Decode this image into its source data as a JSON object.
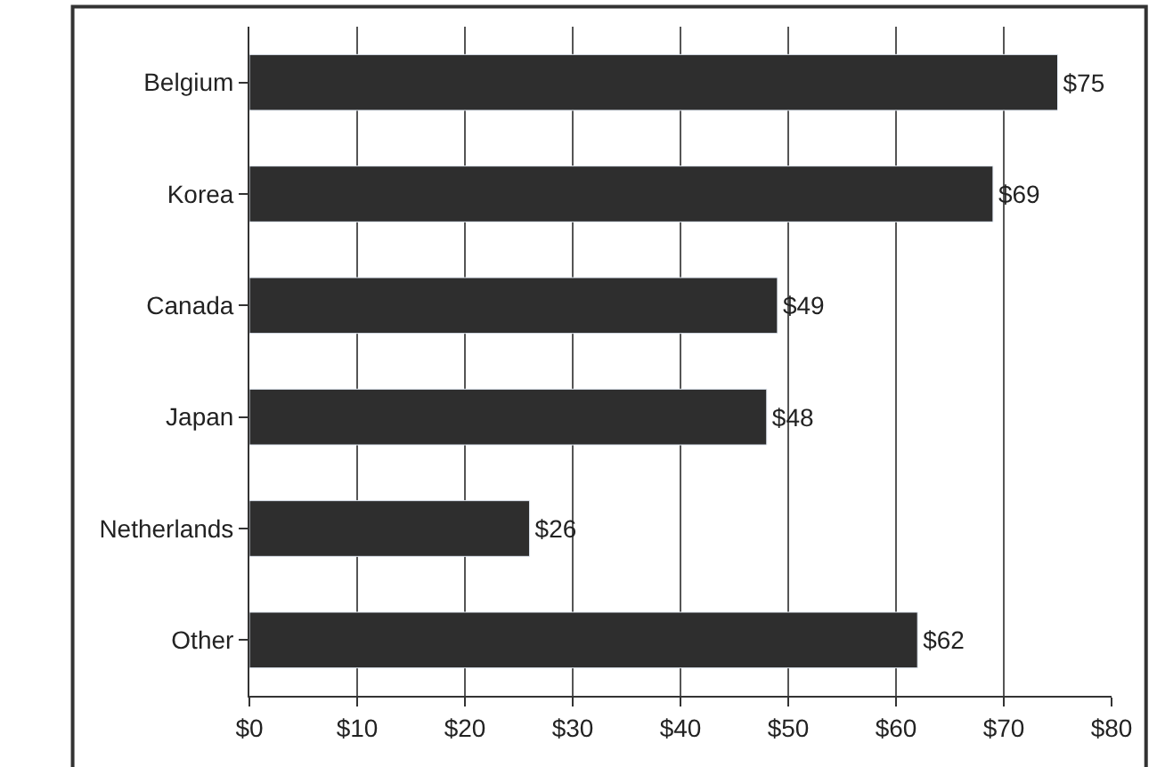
{
  "chart_data": {
    "type": "bar",
    "orientation": "horizontal",
    "categories": [
      "Belgium",
      "Korea",
      "Canada",
      "Japan",
      "Netherlands",
      "Other"
    ],
    "values": [
      75,
      69,
      49,
      48,
      26,
      62
    ],
    "value_labels": [
      "$75",
      "$69",
      "$49",
      "$48",
      "$26",
      "$62"
    ],
    "color": "#2e2e2e",
    "xlim": [
      0,
      80
    ],
    "xticks": [
      {
        "value": 0,
        "label": "$0"
      },
      {
        "value": 10,
        "label": "$10"
      },
      {
        "value": 20,
        "label": "$20"
      },
      {
        "value": 30,
        "label": "$30"
      },
      {
        "value": 40,
        "label": "$40"
      },
      {
        "value": 50,
        "label": "$50"
      },
      {
        "value": 60,
        "label": "$60"
      },
      {
        "value": 70,
        "label": "$70"
      },
      {
        "value": 80,
        "label": "$80"
      }
    ],
    "grid": "x"
  }
}
